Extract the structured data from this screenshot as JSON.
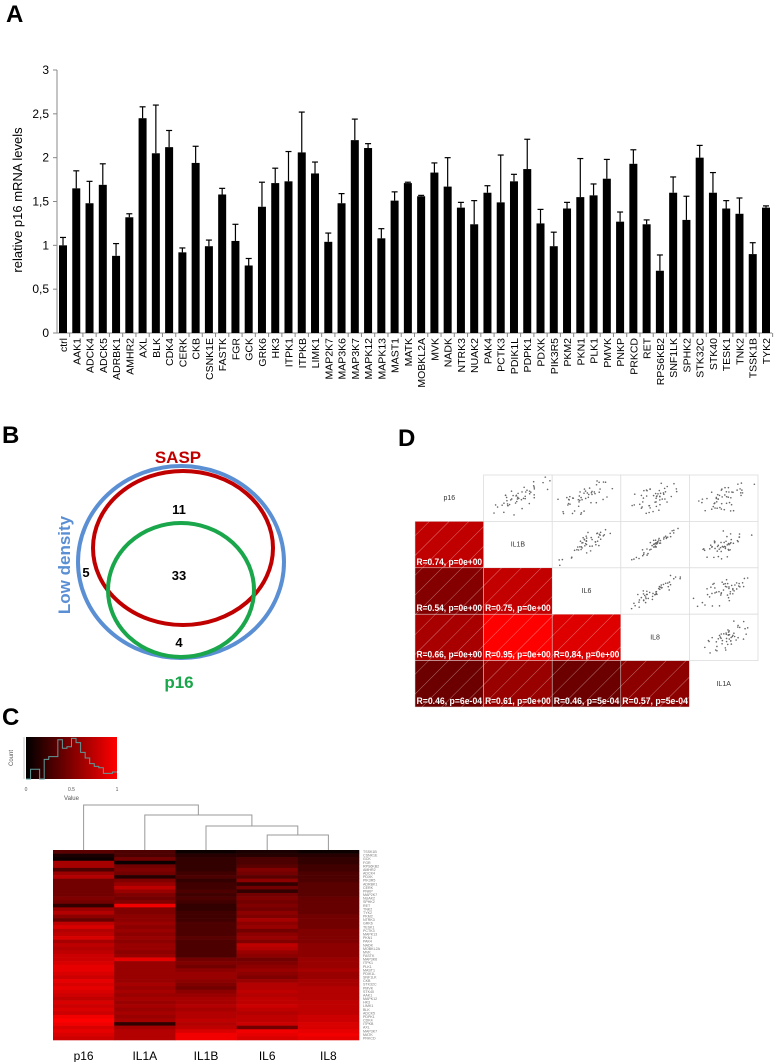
{
  "panels": {
    "a": "A",
    "b": "B",
    "c": "C",
    "d": "D"
  },
  "chart_data": [
    {
      "type": "bar",
      "panel": "A",
      "ylabel": "relative p16  mRNA levels",
      "xlabel": "",
      "ylim": [
        0,
        3
      ],
      "yticks": [
        "0",
        "0,5",
        "1",
        "1,5",
        "2",
        "2,5",
        "3"
      ],
      "bar_color": "#000000",
      "categories": [
        "ctrl",
        "AAK1",
        "ADCK4",
        "ADCK5",
        "ADRBK1",
        "AMHR2",
        "AXL",
        "BLK",
        "CDK4",
        "CERK",
        "CKB",
        "CSNK1E",
        "FASTK",
        "FGR",
        "GCK",
        "GRK6",
        "HK3",
        "ITPK1",
        "ITPKB",
        "LIMK1",
        "MAP2K7",
        "MAP3K6",
        "MAP3K7",
        "MAPK12",
        "MAPK13",
        "MAST1",
        "MATK",
        "MOBKL2A",
        "MVK",
        "NADK",
        "NTRK3",
        "NUAK2",
        "PAK4",
        "PCTK3",
        "PDIK1L",
        "PDPK1",
        "PDXK",
        "PIK3R5",
        "PKM2",
        "PKN1",
        "PLK1",
        "PMVK",
        "PNKP",
        "PRKCD",
        "RET",
        "RPS6KB2",
        "SNF1LK",
        "SPHK2",
        "STK32C",
        "STK40",
        "TESK1",
        "TNK2",
        "TSSK1B",
        "TYK2"
      ],
      "values": [
        1.0,
        1.65,
        1.48,
        1.69,
        0.88,
        1.32,
        2.45,
        2.05,
        2.12,
        0.92,
        1.94,
        0.99,
        1.58,
        1.05,
        0.77,
        1.44,
        1.71,
        1.73,
        2.06,
        1.82,
        1.04,
        1.48,
        2.2,
        2.11,
        1.08,
        1.51,
        1.71,
        1.56,
        1.83,
        1.67,
        1.43,
        1.24,
        1.6,
        1.49,
        1.73,
        1.87,
        1.25,
        0.99,
        1.42,
        1.55,
        1.57,
        1.76,
        1.27,
        1.93,
        1.24,
        0.71,
        1.6,
        1.29,
        2.0,
        1.6,
        1.42,
        1.36,
        0.9,
        1.43
      ],
      "errors": [
        0.09,
        0.2,
        0.25,
        0.24,
        0.14,
        0.04,
        0.13,
        0.55,
        0.19,
        0.05,
        0.19,
        0.07,
        0.07,
        0.19,
        0.08,
        0.28,
        0.17,
        0.34,
        0.46,
        0.13,
        0.1,
        0.11,
        0.24,
        0.05,
        0.11,
        0.1,
        0.01,
        0.01,
        0.11,
        0.33,
        0.06,
        0.27,
        0.08,
        0.54,
        0.08,
        0.34,
        0.16,
        0.16,
        0.07,
        0.44,
        0.13,
        0.22,
        0.11,
        0.16,
        0.05,
        0.18,
        0.18,
        0.27,
        0.14,
        0.23,
        0.09,
        0.18,
        0.13,
        0.02
      ]
    },
    {
      "type": "venn",
      "panel": "B",
      "sets": [
        {
          "name": "SASP",
          "color": "#c00000"
        },
        {
          "name": "Low density",
          "color": "#5b8fd4"
        },
        {
          "name": "p16",
          "color": "#1aa64a"
        }
      ],
      "regions": {
        "sasp_lowdensity_only": "11",
        "all_three": "33",
        "lowdensity_only": "5",
        "p16_lowdensity_only": "4"
      }
    },
    {
      "type": "heatmap",
      "panel": "C",
      "color_key": {
        "xlabel": "Value",
        "ylabel": "Count",
        "xticks": [
          "0",
          "0.5",
          "1"
        ],
        "low_color": "#000000",
        "high_color": "#ff0000",
        "histogram_color": "#5f9a9a",
        "histogram": [
          0,
          7,
          7,
          0,
          14,
          16,
          16,
          28,
          22,
          23,
          29,
          26,
          19,
          15,
          11,
          9,
          8,
          4,
          4,
          5
        ]
      },
      "columns": [
        "p16",
        "IL1A",
        "IL1B",
        "IL6",
        "IL8"
      ],
      "dendrogram": "(p16,(IL1A,(IL1B,(IL6,IL8))))",
      "rows": [
        "TSSK1B",
        "CSNK1E",
        "GCK",
        "FGR",
        "RPS6KB2",
        "AMHR2",
        "ADCK4",
        "PDXK",
        "PIK3R5",
        "ADRBK1",
        "CERK",
        "PNKP",
        "MAP2K7",
        "NUAK2",
        "SPHK2",
        "RET",
        "TNK2",
        "TYK2",
        "PKM2",
        "NTRK3",
        "GRK6",
        "TESK1",
        "PCTK3",
        "MAPK13",
        "PKN1",
        "PAK4",
        "NADK",
        "MOBKL2A",
        "MVK",
        "FASTK",
        "MAP3K6",
        "ITPK1",
        "PLK1",
        "MAST1",
        "PDIK1L",
        "SNF1LK",
        "CKB",
        "STK32C",
        "PMVK",
        "STK40",
        "AAK1",
        "MAPK12",
        "HK3",
        "LIMK1",
        "BLK",
        "ADCK5",
        "PDPK1",
        "CDK4",
        "ITPKB",
        "AXL",
        "MAP3K7",
        "MATK",
        "PRKCD"
      ],
      "values": [
        [
          0.35,
          0.3,
          0.05,
          0.1,
          0.05
        ],
        [
          0.1,
          0.3,
          0.15,
          0.15,
          0.15
        ],
        [
          0.05,
          0.45,
          0.2,
          0.3,
          0.2
        ],
        [
          0.65,
          0.05,
          0.2,
          0.3,
          0.2
        ],
        [
          0.65,
          0.45,
          0.2,
          0.35,
          0.25
        ],
        [
          0.3,
          0.5,
          0.2,
          0.5,
          0.25
        ],
        [
          0.6,
          0.45,
          0.25,
          0.45,
          0.3
        ],
        [
          0.7,
          0.15,
          0.3,
          0.35,
          0.3
        ],
        [
          0.45,
          0.5,
          0.2,
          0.55,
          0.3
        ],
        [
          0.45,
          0.6,
          0.25,
          0.2,
          0.35
        ],
        [
          0.45,
          0.75,
          0.25,
          0.45,
          0.35
        ],
        [
          0.45,
          0.6,
          0.3,
          0.2,
          0.35
        ],
        [
          0.45,
          0.5,
          0.25,
          0.45,
          0.35
        ],
        [
          0.5,
          0.45,
          0.3,
          0.5,
          0.4
        ],
        [
          0.45,
          0.5,
          0.25,
          0.45,
          0.4
        ],
        [
          0.2,
          0.95,
          0.2,
          0.5,
          0.4
        ],
        [
          0.6,
          0.5,
          0.2,
          0.45,
          0.4
        ],
        [
          0.7,
          0.5,
          0.25,
          0.55,
          0.4
        ],
        [
          0.55,
          0.55,
          0.25,
          0.5,
          0.45
        ],
        [
          0.4,
          0.55,
          0.25,
          0.65,
          0.45
        ],
        [
          0.75,
          0.6,
          0.3,
          0.55,
          0.45
        ],
        [
          0.85,
          0.55,
          0.3,
          0.6,
          0.45
        ],
        [
          0.7,
          0.6,
          0.3,
          0.45,
          0.5
        ],
        [
          0.75,
          0.55,
          0.3,
          0.55,
          0.5
        ],
        [
          0.85,
          0.6,
          0.35,
          0.6,
          0.5
        ],
        [
          0.65,
          0.55,
          0.3,
          0.5,
          0.5
        ],
        [
          0.75,
          0.6,
          0.3,
          0.75,
          0.55
        ],
        [
          0.7,
          0.6,
          0.3,
          0.7,
          0.55
        ],
        [
          0.75,
          0.55,
          0.3,
          0.6,
          0.55
        ],
        [
          0.8,
          0.6,
          0.3,
          0.55,
          0.55
        ],
        [
          0.8,
          0.9,
          0.45,
          0.45,
          0.6
        ],
        [
          0.85,
          0.6,
          0.5,
          0.5,
          0.6
        ],
        [
          0.9,
          0.6,
          0.45,
          0.55,
          0.6
        ],
        [
          0.9,
          0.6,
          0.55,
          0.6,
          0.65
        ],
        [
          0.85,
          0.6,
          0.6,
          0.55,
          0.6
        ],
        [
          0.8,
          0.6,
          0.6,
          0.5,
          0.6
        ],
        [
          0.9,
          0.6,
          0.55,
          0.6,
          0.65
        ],
        [
          0.85,
          0.65,
          0.5,
          0.7,
          0.65
        ],
        [
          0.9,
          0.6,
          0.45,
          0.7,
          0.7
        ],
        [
          0.85,
          0.65,
          0.55,
          0.75,
          0.7
        ],
        [
          0.8,
          0.6,
          0.6,
          0.7,
          0.7
        ],
        [
          0.75,
          0.65,
          0.65,
          0.75,
          0.7
        ],
        [
          0.85,
          0.6,
          0.65,
          0.75,
          0.75
        ],
        [
          0.8,
          0.65,
          0.7,
          0.8,
          0.75
        ],
        [
          0.85,
          0.6,
          0.65,
          0.75,
          0.75
        ],
        [
          0.8,
          0.65,
          0.7,
          0.7,
          0.75
        ],
        [
          0.95,
          0.6,
          0.7,
          0.75,
          0.8
        ],
        [
          1.0,
          0.65,
          0.75,
          0.75,
          0.8
        ],
        [
          0.95,
          0.2,
          0.7,
          0.8,
          0.85
        ],
        [
          0.85,
          0.65,
          0.75,
          0.45,
          0.85
        ],
        [
          0.9,
          0.7,
          0.85,
          0.95,
          0.9
        ],
        [
          0.85,
          0.7,
          0.95,
          0.9,
          0.95
        ],
        [
          0.8,
          0.7,
          0.95,
          0.85,
          0.9
        ]
      ]
    },
    {
      "type": "correlation_matrix",
      "panel": "D",
      "variables": [
        "p16",
        "IL1B",
        "IL6",
        "IL8",
        "IL1A"
      ],
      "lower": [
        [],
        [
          {
            "R": 0.74,
            "label": "R=0.74, p=0e+00"
          }
        ],
        [
          {
            "R": 0.54,
            "label": "R=0.54, p=0e+00"
          },
          {
            "R": 0.75,
            "label": "R=0.75, p=0e+00"
          }
        ],
        [
          {
            "R": 0.66,
            "label": "R=0.66, p=0e+00"
          },
          {
            "R": 0.95,
            "label": "R=0.95, p=0e+00"
          },
          {
            "R": 0.84,
            "label": "R=0.84, p=0e+00"
          }
        ],
        [
          {
            "R": 0.46,
            "label": "R=0.46, p=6e-04"
          },
          {
            "R": 0.61,
            "label": "R=0.61, p=0e+00"
          },
          {
            "R": 0.46,
            "label": "R=0.46, p=5e-04"
          },
          {
            "R": 0.57,
            "label": "R=0.57, p=5e-04"
          }
        ]
      ],
      "upper": "scatter plots"
    }
  ]
}
